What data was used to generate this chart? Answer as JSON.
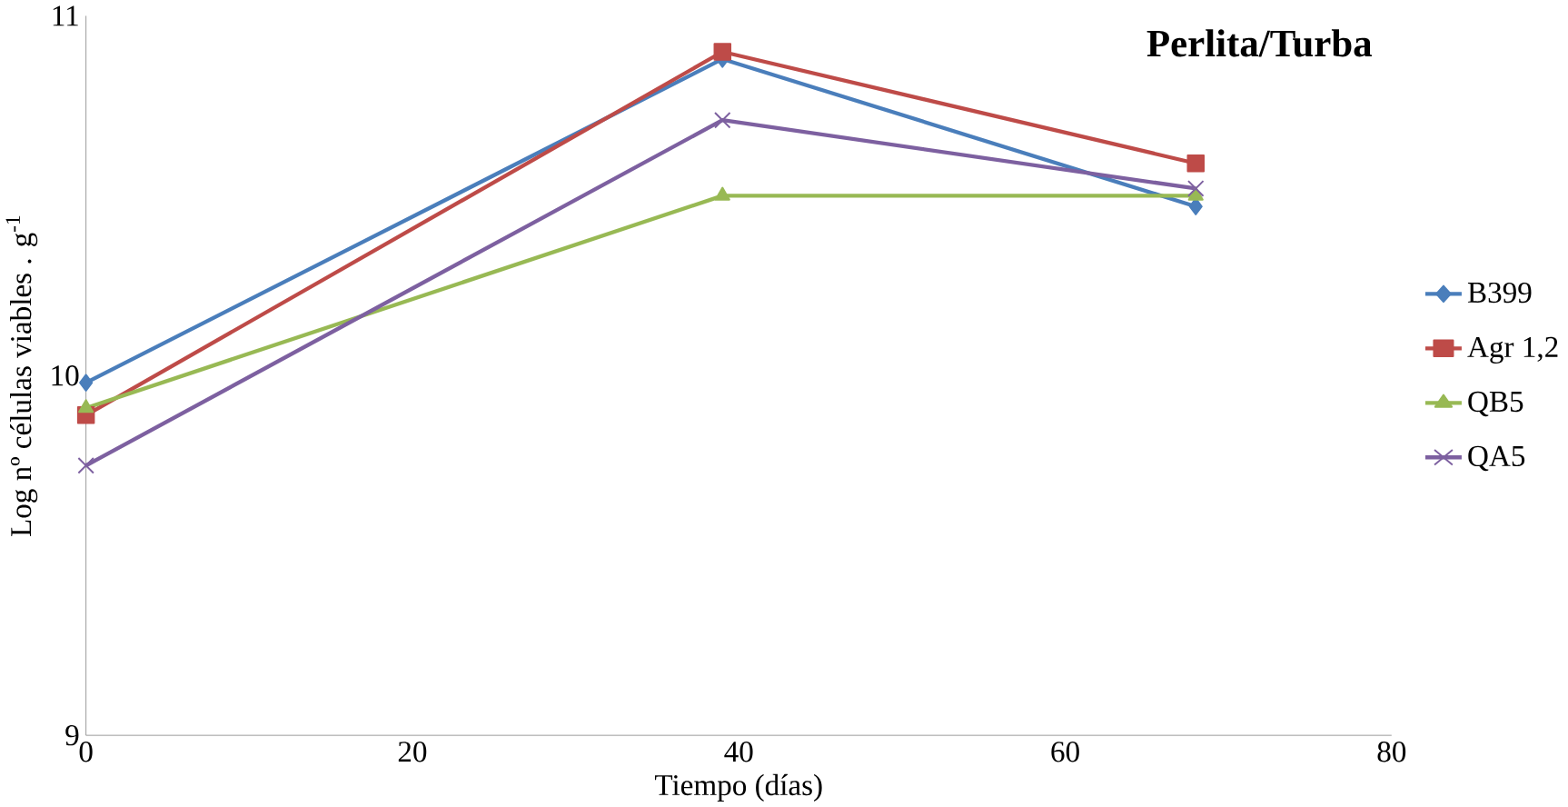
{
  "chart_data": {
    "type": "line",
    "title": "Perlita/Turba",
    "xlabel": "Tiempo (días)",
    "ylabel": "Log nº células viables . g$^{-1}$",
    "x": [
      0,
      39,
      68
    ],
    "series": [
      {
        "name": "B399",
        "color": "#4a7ebb",
        "marker": "diamond",
        "values": [
          9.98,
          10.88,
          10.47
        ]
      },
      {
        "name": "Agr 1,2",
        "color": "#be4b48",
        "marker": "square",
        "values": [
          9.89,
          10.9,
          10.59
        ]
      },
      {
        "name": "QB5",
        "color": "#98b954",
        "marker": "triangle",
        "values": [
          9.91,
          10.5,
          10.5
        ]
      },
      {
        "name": "QA5",
        "color": "#7d60a0",
        "marker": "cross",
        "values": [
          9.75,
          10.71,
          10.52
        ]
      }
    ],
    "xlim": [
      0,
      80
    ],
    "xticks": [
      0,
      20,
      40,
      60,
      80
    ],
    "ylim": [
      9,
      11
    ],
    "yticks": [
      9,
      10,
      11
    ],
    "grid": false,
    "legend": "right",
    "line_style": "solid"
  }
}
